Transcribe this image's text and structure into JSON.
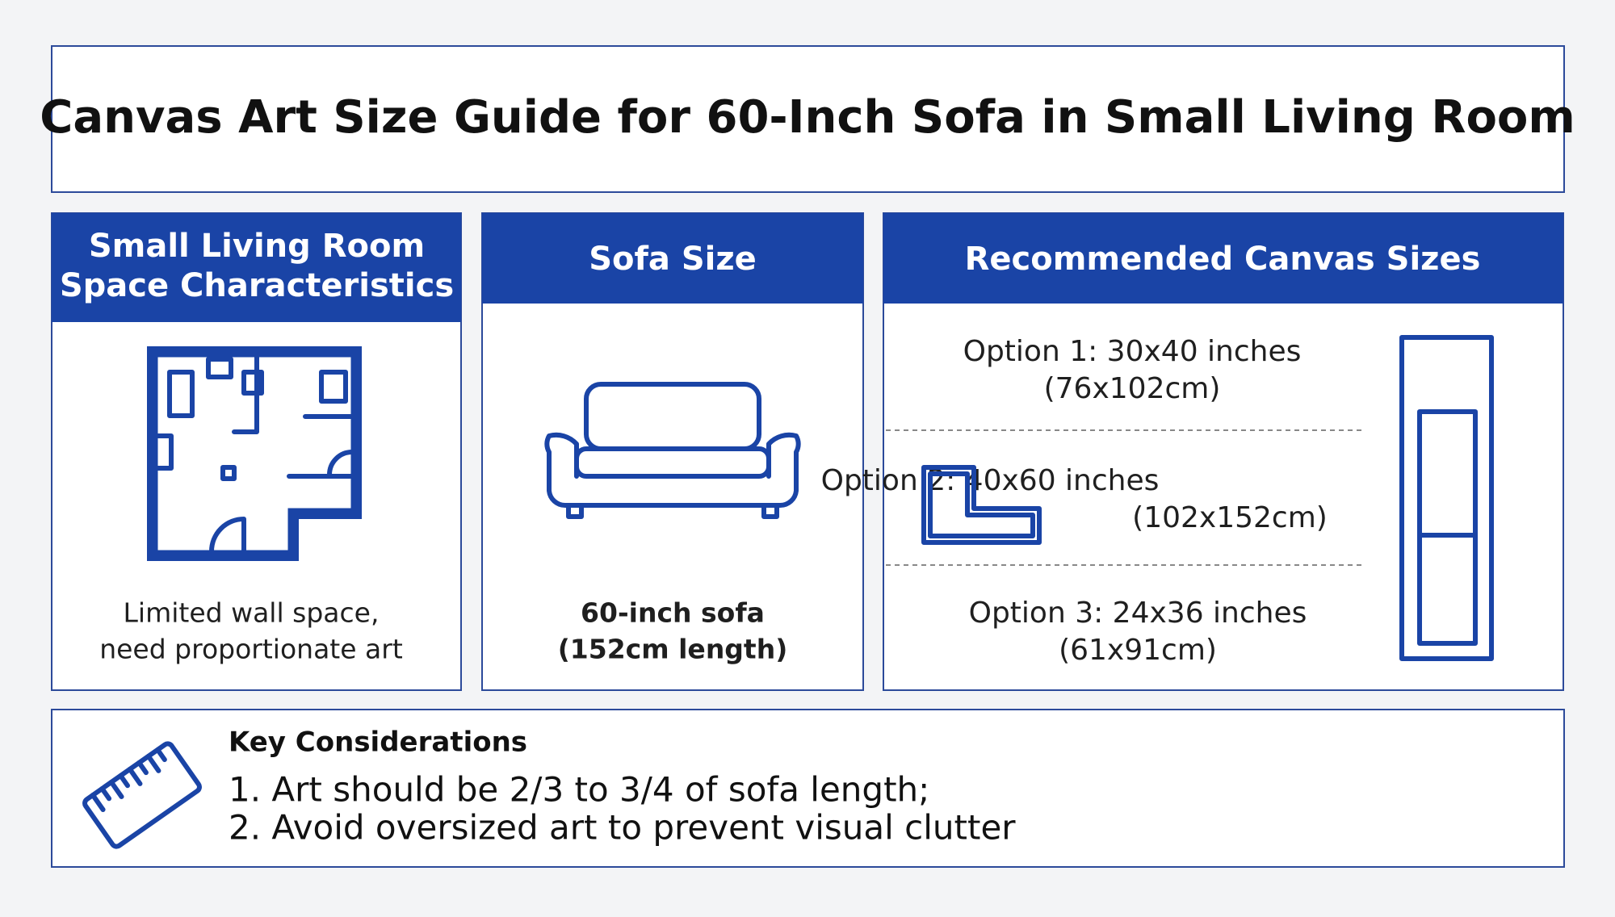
{
  "header": {
    "title": "Canvas Art Size Guide for 60-Inch Sofa in Small Living Room"
  },
  "panels": [
    {
      "title": [
        "Small Living Room",
        "Space Characteristics"
      ],
      "text": [
        "Limited wall space,",
        "need proportionate art"
      ]
    },
    {
      "title": [
        "Sofa Size"
      ],
      "text": [
        "60-inch sofa",
        "(152cm length)"
      ]
    },
    {
      "title": [
        "Recommended Canvas Sizes"
      ],
      "options": [
        [
          "Option 1: 30x40 inches",
          "(76x102cm)"
        ],
        [
          "Option 2: 40x60 inches",
          "(102x152cm)"
        ],
        [
          "Option 3: 24x36 inches",
          "(61x91cm)"
        ]
      ]
    }
  ],
  "key_considerations": {
    "title": "Key Considerations",
    "items": [
      "1. Art should be 2/3 to 3/4 of sofa length;",
      "2. Avoid oversized art to prevent visual clutter"
    ]
  }
}
